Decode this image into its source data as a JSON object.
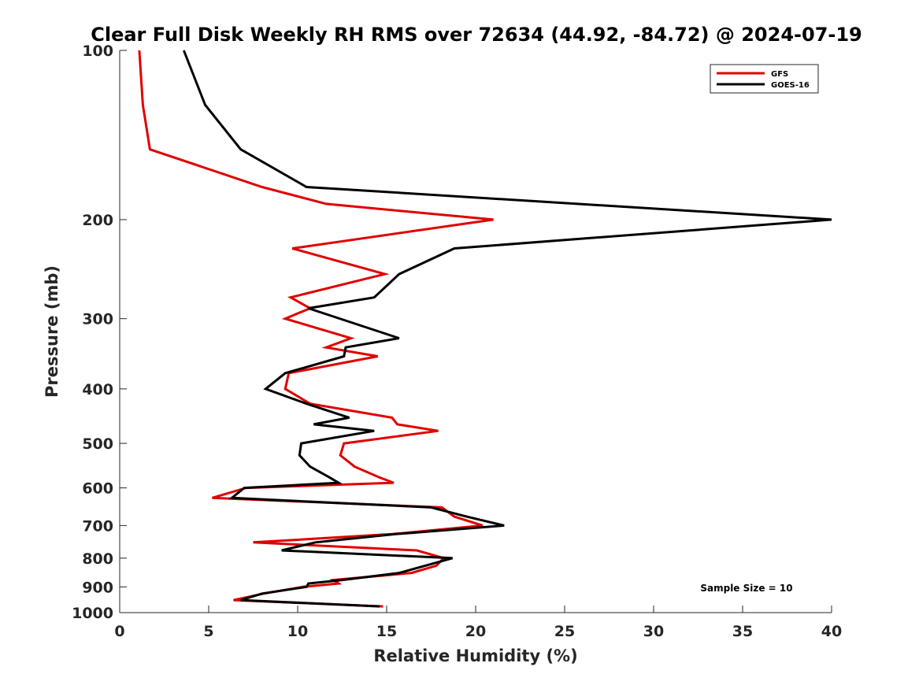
{
  "chart_data": {
    "type": "line",
    "title": "Clear Full Disk Weekly RH RMS over 72634 (44.92, -84.72) @ 2024-07-19",
    "xlabel": "Relative Humidity (%)",
    "ylabel": "Pressure (mb)",
    "xlim": [
      0,
      40
    ],
    "ylim": [
      100,
      1000
    ],
    "y_scale": "log",
    "y_reversed": true,
    "grid": false,
    "legend_position": "top-right",
    "x_ticks": [
      0,
      5,
      10,
      15,
      20,
      25,
      30,
      35,
      40
    ],
    "y_ticks": [
      100,
      200,
      300,
      400,
      500,
      600,
      700,
      800,
      900,
      1000
    ],
    "annotation": "Sample Size = 10",
    "series": [
      {
        "name": "GFS",
        "color": "#e00000",
        "points": [
          [
            1.1,
            100
          ],
          [
            1.3,
            125
          ],
          [
            1.7,
            150
          ],
          [
            8.0,
            175
          ],
          [
            11.6,
            187.5
          ],
          [
            21.0,
            200
          ],
          [
            9.7,
            225
          ],
          [
            14.9,
            250
          ],
          [
            9.6,
            275
          ],
          [
            10.7,
            287.5
          ],
          [
            9.3,
            300
          ],
          [
            13.0,
            325
          ],
          [
            11.6,
            337.5
          ],
          [
            14.5,
            350
          ],
          [
            9.5,
            375
          ],
          [
            9.3,
            400
          ],
          [
            10.7,
            425
          ],
          [
            15.3,
            450
          ],
          [
            15.6,
            462.5
          ],
          [
            17.9,
            475
          ],
          [
            12.6,
            500
          ],
          [
            12.4,
            525
          ],
          [
            13.2,
            550
          ],
          [
            14.6,
            575
          ],
          [
            15.4,
            587.5
          ],
          [
            7.1,
            600
          ],
          [
            5.2,
            625
          ],
          [
            18.1,
            650
          ],
          [
            18.8,
            675
          ],
          [
            20.4,
            700
          ],
          [
            15.3,
            725
          ],
          [
            7.5,
            750
          ],
          [
            16.7,
            775
          ],
          [
            18.2,
            800
          ],
          [
            17.8,
            825
          ],
          [
            16.4,
            850
          ],
          [
            12.0,
            875
          ],
          [
            12.3,
            887.5
          ],
          [
            10.3,
            900
          ],
          [
            8.1,
            925
          ],
          [
            6.4,
            950
          ],
          [
            14.8,
            975
          ]
        ]
      },
      {
        "name": "GOES-16",
        "color": "#000000",
        "points": [
          [
            3.6,
            100
          ],
          [
            4.8,
            125
          ],
          [
            6.8,
            150
          ],
          [
            10.5,
            175
          ],
          [
            40.0,
            200
          ],
          [
            18.8,
            225
          ],
          [
            15.7,
            250
          ],
          [
            14.3,
            275
          ],
          [
            10.6,
            287.5
          ],
          [
            15.7,
            325
          ],
          [
            12.7,
            337.5
          ],
          [
            12.6,
            350
          ],
          [
            9.3,
            375
          ],
          [
            8.2,
            400
          ],
          [
            10.5,
            425
          ],
          [
            12.9,
            450
          ],
          [
            10.9,
            462.5
          ],
          [
            14.3,
            475
          ],
          [
            10.2,
            500
          ],
          [
            10.1,
            525
          ],
          [
            10.7,
            550
          ],
          [
            11.8,
            575
          ],
          [
            12.3,
            587.5
          ],
          [
            7.0,
            600
          ],
          [
            6.3,
            625
          ],
          [
            17.5,
            650
          ],
          [
            19.5,
            675
          ],
          [
            21.6,
            700
          ],
          [
            15.5,
            725
          ],
          [
            11.0,
            750
          ],
          [
            9.1,
            775
          ],
          [
            18.7,
            800
          ],
          [
            15.7,
            850
          ],
          [
            12.5,
            875
          ],
          [
            10.6,
            887.5
          ],
          [
            10.5,
            900
          ],
          [
            8.0,
            925
          ],
          [
            6.8,
            950
          ],
          [
            14.6,
            975
          ]
        ]
      }
    ]
  }
}
